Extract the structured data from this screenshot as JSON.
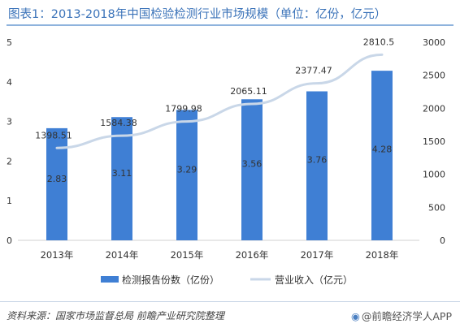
{
  "title": "图表1：2013-2018年中国检验检测行业市场规模（单位：亿份，亿元）",
  "source": "资料来源：国家市场监督总局 前瞻产业研究院整理",
  "brand": {
    "icon": "eye-logo-icon",
    "text": "@前瞻经济学人APP"
  },
  "colors": {
    "bar": "#3f7fd4",
    "line": "#c9d7e8",
    "axis": "#d0d0d0",
    "title": "#3b73b9"
  },
  "chart_data": {
    "type": "bar",
    "categories": [
      "2013年",
      "2014年",
      "2015年",
      "2016年",
      "2017年",
      "2018年"
    ],
    "series": [
      {
        "name": "检测报告份数（亿份）",
        "type": "bar",
        "axis": "left",
        "values": [
          2.83,
          3.11,
          3.29,
          3.56,
          3.76,
          4.28
        ],
        "labels": [
          "2.83",
          "3.11",
          "3.29",
          "3.56",
          "3.76",
          "4.28"
        ]
      },
      {
        "name": "营业收入（亿元）",
        "type": "line",
        "axis": "right",
        "values": [
          1398.51,
          1584.38,
          1799.98,
          2065.11,
          2377.47,
          2810.5
        ],
        "labels": [
          "1398.51",
          "1584.38",
          "1799.98",
          "2065.11",
          "2377.47",
          "2810.5"
        ]
      }
    ],
    "y_left": {
      "range": [
        0,
        5
      ],
      "ticks": [
        "0",
        "1",
        "2",
        "3",
        "4",
        "5"
      ]
    },
    "y_right": {
      "range": [
        0,
        3000
      ],
      "ticks": [
        "0",
        "500",
        "1000",
        "1500",
        "2000",
        "2500",
        "3000"
      ]
    },
    "grid": false,
    "legend": "bottom"
  }
}
